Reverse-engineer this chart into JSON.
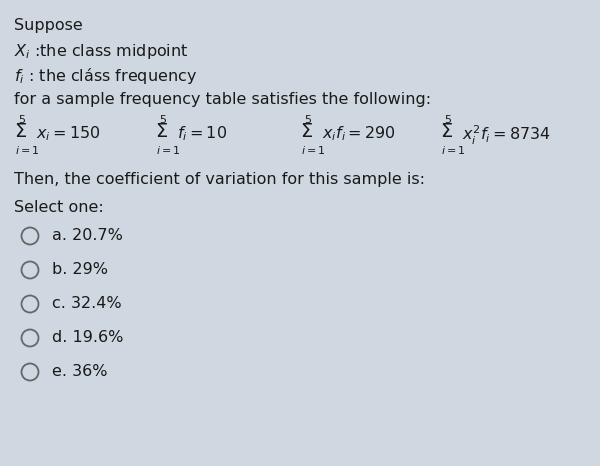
{
  "background_color": "#cfd8e0",
  "text_color": "#1a1a1a",
  "font_size_main": 11.5,
  "font_size_math": 11.5,
  "font_size_small": 8.0,
  "font_size_sigma": 14,
  "options": [
    "a. 20.7%",
    "b. 29%",
    "c. 32.4%",
    "d. 19.6%",
    "e. 36%"
  ]
}
